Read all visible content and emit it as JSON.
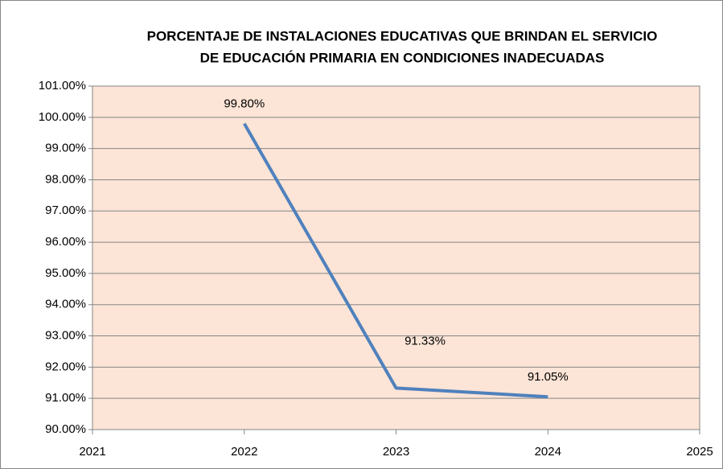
{
  "chart_data": {
    "type": "line",
    "title": [
      "PORCENTAJE DE INSTALACIONES EDUCATIVAS QUE BRINDAN EL SERVICIO",
      "DE EDUCACIÓN PRIMARIA EN CONDICIONES INADECUADAS"
    ],
    "x": [
      2022,
      2023,
      2024
    ],
    "series": [
      {
        "color": "#4f81bd",
        "values": [
          99.8,
          91.33,
          91.05
        ],
        "value_labels": [
          "99.80%",
          "91.33%",
          "91.05%"
        ]
      }
    ],
    "xlim": [
      2021,
      2025
    ],
    "xticks": [
      2021,
      2022,
      2023,
      2024,
      2025
    ],
    "ylim": [
      90,
      101
    ],
    "yticks": [
      {
        "value": 90,
        "label": "90.00%"
      },
      {
        "value": 91,
        "label": "91.00%"
      },
      {
        "value": 92,
        "label": "92.00%"
      },
      {
        "value": 93,
        "label": "93.00%"
      },
      {
        "value": 94,
        "label": "94.00%"
      },
      {
        "value": 95,
        "label": "95.00%"
      },
      {
        "value": 96,
        "label": "96.00%"
      },
      {
        "value": 97,
        "label": "97.00%"
      },
      {
        "value": 98,
        "label": "98.00%"
      },
      {
        "value": 99,
        "label": "99.00%"
      },
      {
        "value": 100,
        "label": "100.00%"
      },
      {
        "value": 101,
        "label": "101.00%"
      }
    ],
    "grid": true,
    "plot_background": "#fce4d6"
  }
}
